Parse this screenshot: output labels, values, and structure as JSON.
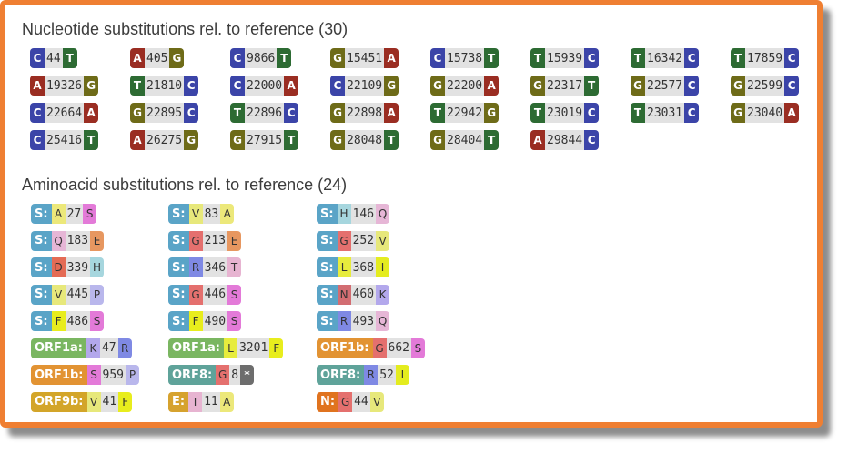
{
  "nucleotide_title": "Nucleotide substitutions rel. to reference (30)",
  "aminoacid_title": "Aminoacid substitutions rel. to reference (24)",
  "colors": {
    "accent_border": "#ef7f32",
    "bases": {
      "A": "#9a2d22",
      "C": "#3b44a8",
      "G": "#6e6b18",
      "T": "#2d6b33"
    },
    "genes": {
      "S:": "#5aa4c7",
      "ORF1a:": "#7ab661",
      "ORF1b:": "#e29333",
      "ORF8:": "#5fa39a",
      "ORF9b:": "#d3a529",
      "E:": "#d6a22e",
      "N:": "#e0731f"
    },
    "aminoacids": {
      "A": "#ece87a",
      "S": "#e37ad8",
      "V": "#e7e87b",
      "H": "#a6d6de",
      "Q": "#e6b6d6",
      "G": "#e4706e",
      "E": "#e79760",
      "D": "#e46b55",
      "R": "#7f89e4",
      "T": "#e7b4d1",
      "L": "#e7ec3d",
      "I": "#e4ec1f",
      "P": "#b9b7ec",
      "N": "#d26d72",
      "K": "#b3a8ec",
      "F": "#e8ed1d",
      "*": "#6d6d6d"
    }
  },
  "nucleotide_substitutions": [
    {
      "ref": "C",
      "pos": "44",
      "alt": "T"
    },
    {
      "ref": "A",
      "pos": "405",
      "alt": "G"
    },
    {
      "ref": "C",
      "pos": "9866",
      "alt": "T"
    },
    {
      "ref": "G",
      "pos": "15451",
      "alt": "A"
    },
    {
      "ref": "C",
      "pos": "15738",
      "alt": "T"
    },
    {
      "ref": "T",
      "pos": "15939",
      "alt": "C"
    },
    {
      "ref": "T",
      "pos": "16342",
      "alt": "C"
    },
    {
      "ref": "T",
      "pos": "17859",
      "alt": "C"
    },
    {
      "ref": "A",
      "pos": "19326",
      "alt": "G"
    },
    {
      "ref": "T",
      "pos": "21810",
      "alt": "C"
    },
    {
      "ref": "C",
      "pos": "22000",
      "alt": "A"
    },
    {
      "ref": "C",
      "pos": "22109",
      "alt": "G"
    },
    {
      "ref": "G",
      "pos": "22200",
      "alt": "A"
    },
    {
      "ref": "G",
      "pos": "22317",
      "alt": "T"
    },
    {
      "ref": "G",
      "pos": "22577",
      "alt": "C"
    },
    {
      "ref": "G",
      "pos": "22599",
      "alt": "C"
    },
    {
      "ref": "C",
      "pos": "22664",
      "alt": "A"
    },
    {
      "ref": "G",
      "pos": "22895",
      "alt": "C"
    },
    {
      "ref": "T",
      "pos": "22896",
      "alt": "C"
    },
    {
      "ref": "G",
      "pos": "22898",
      "alt": "A"
    },
    {
      "ref": "T",
      "pos": "22942",
      "alt": "G"
    },
    {
      "ref": "T",
      "pos": "23019",
      "alt": "C"
    },
    {
      "ref": "T",
      "pos": "23031",
      "alt": "C"
    },
    {
      "ref": "G",
      "pos": "23040",
      "alt": "A"
    },
    {
      "ref": "C",
      "pos": "25416",
      "alt": "T"
    },
    {
      "ref": "A",
      "pos": "26275",
      "alt": "G"
    },
    {
      "ref": "G",
      "pos": "27915",
      "alt": "T"
    },
    {
      "ref": "G",
      "pos": "28048",
      "alt": "T"
    },
    {
      "ref": "G",
      "pos": "28404",
      "alt": "T"
    },
    {
      "ref": "A",
      "pos": "29844",
      "alt": "C"
    }
  ],
  "aminoacid_substitutions": [
    {
      "gene": "S:",
      "ref": "A",
      "pos": "27",
      "alt": "S"
    },
    {
      "gene": "S:",
      "ref": "V",
      "pos": "83",
      "alt": "A"
    },
    {
      "gene": "S:",
      "ref": "H",
      "pos": "146",
      "alt": "Q"
    },
    {
      "gene": "S:",
      "ref": "Q",
      "pos": "183",
      "alt": "E"
    },
    {
      "gene": "S:",
      "ref": "G",
      "pos": "213",
      "alt": "E"
    },
    {
      "gene": "S:",
      "ref": "G",
      "pos": "252",
      "alt": "V"
    },
    {
      "gene": "S:",
      "ref": "D",
      "pos": "339",
      "alt": "H"
    },
    {
      "gene": "S:",
      "ref": "R",
      "pos": "346",
      "alt": "T"
    },
    {
      "gene": "S:",
      "ref": "L",
      "pos": "368",
      "alt": "I"
    },
    {
      "gene": "S:",
      "ref": "V",
      "pos": "445",
      "alt": "P"
    },
    {
      "gene": "S:",
      "ref": "G",
      "pos": "446",
      "alt": "S"
    },
    {
      "gene": "S:",
      "ref": "N",
      "pos": "460",
      "alt": "K"
    },
    {
      "gene": "S:",
      "ref": "F",
      "pos": "486",
      "alt": "S"
    },
    {
      "gene": "S:",
      "ref": "F",
      "pos": "490",
      "alt": "S"
    },
    {
      "gene": "S:",
      "ref": "R",
      "pos": "493",
      "alt": "Q"
    },
    {
      "gene": "ORF1a:",
      "ref": "K",
      "pos": "47",
      "alt": "R"
    },
    {
      "gene": "ORF1a:",
      "ref": "L",
      "pos": "3201",
      "alt": "F"
    },
    {
      "gene": "ORF1b:",
      "ref": "G",
      "pos": "662",
      "alt": "S"
    },
    {
      "gene": "ORF1b:",
      "ref": "S",
      "pos": "959",
      "alt": "P"
    },
    {
      "gene": "ORF8:",
      "ref": "G",
      "pos": "8",
      "alt": "*"
    },
    {
      "gene": "ORF8:",
      "ref": "R",
      "pos": "52",
      "alt": "I"
    },
    {
      "gene": "ORF9b:",
      "ref": "V",
      "pos": "41",
      "alt": "F"
    },
    {
      "gene": "E:",
      "ref": "T",
      "pos": "11",
      "alt": "A"
    },
    {
      "gene": "N:",
      "ref": "G",
      "pos": "44",
      "alt": "V"
    }
  ]
}
